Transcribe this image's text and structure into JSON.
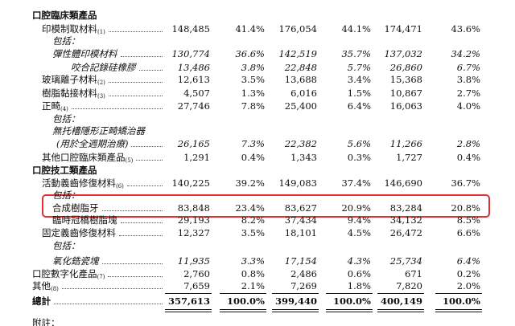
{
  "table": {
    "rows": [
      {
        "label": "口腔臨床類產品"
      },
      {
        "label": "印模制取材料",
        "note": "(1)",
        "values": [
          "148,485",
          "41.4%",
          "176,054",
          "44.1%",
          "174,471",
          "43.6%"
        ]
      },
      {
        "label": "包括："
      },
      {
        "label": "彈性體印模材料",
        "values": [
          "130,774",
          "36.6%",
          "142,519",
          "35.7%",
          "137,032",
          "34.2%"
        ]
      },
      {
        "label": "咬合記錄硅橡膠",
        "values": [
          "13,486",
          "3.8%",
          "22,848",
          "5.7%",
          "26,860",
          "6.7%"
        ]
      },
      {
        "label": "玻璃離子材料",
        "note": "(2)",
        "values": [
          "12,613",
          "3.5%",
          "13,688",
          "3.4%",
          "15,368",
          "3.8%"
        ]
      },
      {
        "label": "樹脂黏接材料",
        "note": "(3)",
        "values": [
          "4,507",
          "1.3%",
          "6,016",
          "1.5%",
          "10,867",
          "2.7%"
        ]
      },
      {
        "label": "正畸",
        "note": "(4)",
        "values": [
          "27,746",
          "7.8%",
          "25,400",
          "6.4%",
          "16,063",
          "4.0%"
        ]
      },
      {
        "label": "包括："
      },
      {
        "label": "無托槽隱形正畸矯治器"
      },
      {
        "label": "(用於全週期治療)",
        "values": [
          "26,165",
          "7.3%",
          "22,382",
          "5.6%",
          "11,266",
          "2.8%"
        ]
      },
      {
        "label": "其他口腔臨床類產品",
        "note": "(5)",
        "values": [
          "1,291",
          "0.4%",
          "1,343",
          "0.3%",
          "1,727",
          "0.4%"
        ]
      },
      {
        "label": "口腔技工類產品"
      },
      {
        "label": "活動義齒修復材料",
        "note": "(6)",
        "values": [
          "140,225",
          "39.2%",
          "149,083",
          "37.4%",
          "146,690",
          "36.7%"
        ]
      },
      {
        "label": "包括："
      },
      {
        "label": "合成樹脂牙",
        "values": [
          "83,848",
          "23.4%",
          "83,627",
          "20.9%",
          "83,284",
          "20.8%"
        ]
      },
      {
        "label": "臨時冠橋樹脂塊",
        "values": [
          "29,193",
          "8.2%",
          "37,434",
          "9.4%",
          "34,132",
          "8.5%"
        ]
      },
      {
        "label": "固定義齒修復材料",
        "values": [
          "12,327",
          "3.5%",
          "18,101",
          "4.5%",
          "26,472",
          "6.6%"
        ]
      },
      {
        "label": "包括："
      },
      {
        "label": "氧化鋯瓷塊",
        "values": [
          "11,935",
          "3.3%",
          "17,154",
          "4.3%",
          "25,734",
          "6.4%"
        ]
      },
      {
        "label": "口腔數字化產品",
        "note": "(7)",
        "values": [
          "2,760",
          "0.8%",
          "2,486",
          "0.6%",
          "671",
          "0.2%"
        ]
      },
      {
        "label": "其他",
        "note": "(8)",
        "values": [
          "7,659",
          "2.1%",
          "7,269",
          "1.8%",
          "7,820",
          "2.0%"
        ]
      },
      {
        "label": "總計",
        "values": [
          "357,613",
          "100.0%",
          "399,440",
          "100.0%",
          "400,149",
          "100.0%"
        ]
      },
      {
        "label": "附註："
      }
    ]
  }
}
